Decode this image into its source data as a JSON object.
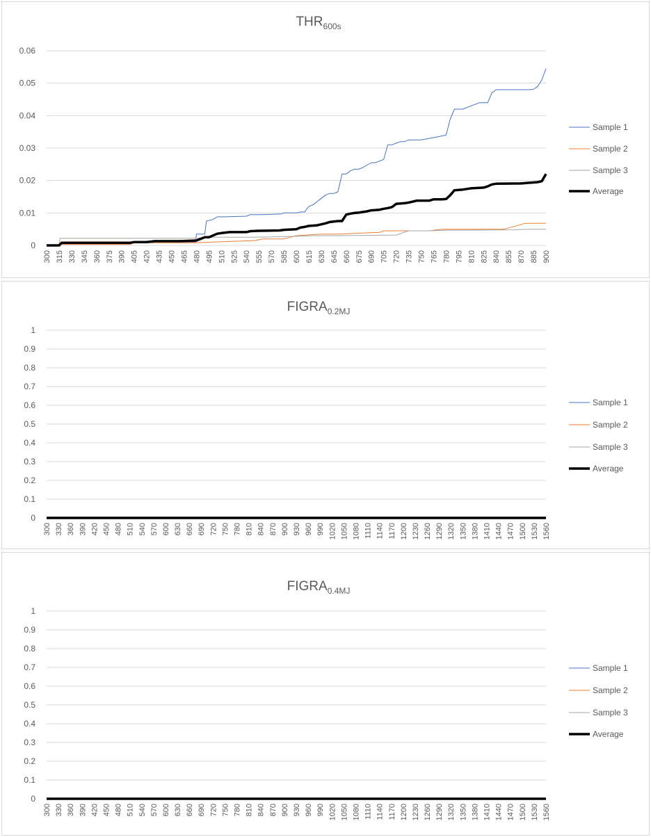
{
  "chart_data": [
    {
      "type": "line",
      "title": "THR",
      "title_subscript": "600s",
      "ylim": [
        0,
        0.06
      ],
      "yticks": [
        "0",
        "0.01",
        "0.02",
        "0.03",
        "0.04",
        "0.05",
        "0.06"
      ],
      "x_categories": [
        "300",
        "315",
        "330",
        "345",
        "360",
        "375",
        "390",
        "405",
        "420",
        "435",
        "450",
        "465",
        "480",
        "495",
        "510",
        "525",
        "540",
        "555",
        "570",
        "585",
        "600",
        "615",
        "630",
        "645",
        "660",
        "675",
        "690",
        "705",
        "720",
        "735",
        "750",
        "765",
        "780",
        "795",
        "810",
        "825",
        "840",
        "855",
        "870",
        "885",
        "900"
      ],
      "grid": true,
      "legend_position": "right",
      "series": [
        {
          "name": "Sample 1",
          "color": "#4472C4",
          "width": 1,
          "x": [
            300,
            315,
            316,
            400,
            401,
            479,
            480,
            490,
            492,
            500,
            505,
            515,
            540,
            545,
            560,
            582,
            585,
            600,
            605,
            610,
            615,
            620,
            625,
            630,
            635,
            640,
            645,
            650,
            655,
            660,
            665,
            670,
            675,
            680,
            690,
            695,
            700,
            705,
            710,
            715,
            720,
            725,
            730,
            735,
            750,
            760,
            770,
            780,
            785,
            790,
            800,
            810,
            820,
            830,
            835,
            840,
            860,
            880,
            885,
            890,
            895,
            900
          ],
          "y": [
            0,
            0,
            0.0005,
            0.0005,
            0.001,
            0.001,
            0.0035,
            0.0035,
            0.0075,
            0.008,
            0.0088,
            0.0088,
            0.009,
            0.0095,
            0.0095,
            0.0097,
            0.01,
            0.01,
            0.0103,
            0.0103,
            0.012,
            0.0125,
            0.0135,
            0.0145,
            0.0155,
            0.016,
            0.016,
            0.0165,
            0.022,
            0.022,
            0.023,
            0.0235,
            0.0235,
            0.024,
            0.0255,
            0.0255,
            0.026,
            0.0265,
            0.031,
            0.031,
            0.0315,
            0.032,
            0.032,
            0.0325,
            0.0325,
            0.033,
            0.0335,
            0.034,
            0.039,
            0.042,
            0.042,
            0.043,
            0.044,
            0.044,
            0.047,
            0.048,
            0.048,
            0.048,
            0.0481,
            0.049,
            0.051,
            0.0545
          ]
        },
        {
          "name": "Sample 2",
          "color": "#ED7D31",
          "width": 1,
          "x": [
            300,
            315,
            316,
            400,
            405,
            480,
            500,
            550,
            560,
            585,
            600,
            630,
            650,
            700,
            705,
            760,
            775,
            800,
            850,
            875,
            900
          ],
          "y": [
            0,
            0,
            0.0003,
            0.0003,
            0.0008,
            0.0008,
            0.001,
            0.0015,
            0.002,
            0.002,
            0.003,
            0.0035,
            0.0035,
            0.004,
            0.0045,
            0.0045,
            0.005,
            0.005,
            0.005,
            0.0068,
            0.0068
          ]
        },
        {
          "name": "Sample 3",
          "color": "#A5A5A5",
          "width": 1,
          "x": [
            300,
            315,
            316,
            400,
            405,
            480,
            500,
            550,
            600,
            620,
            650,
            720,
            735,
            760,
            780,
            800,
            860,
            880,
            900
          ],
          "y": [
            0,
            0,
            0.0022,
            0.0022,
            0.0022,
            0.0022,
            0.0025,
            0.0025,
            0.0028,
            0.003,
            0.003,
            0.0032,
            0.0045,
            0.0045,
            0.0047,
            0.0047,
            0.0048,
            0.005,
            0.005
          ]
        },
        {
          "name": "Average",
          "color": "#000000",
          "width": 3.5,
          "x": [
            300,
            315,
            318,
            400,
            405,
            420,
            430,
            460,
            480,
            490,
            495,
            505,
            510,
            520,
            540,
            545,
            555,
            580,
            585,
            600,
            605,
            610,
            615,
            625,
            630,
            635,
            640,
            650,
            655,
            660,
            665,
            670,
            675,
            685,
            690,
            700,
            705,
            710,
            715,
            720,
            730,
            735,
            740,
            745,
            760,
            765,
            775,
            780,
            785,
            790,
            800,
            805,
            810,
            825,
            830,
            835,
            840,
            870,
            880,
            890,
            895,
            900
          ],
          "y": [
            0,
            0,
            0.0008,
            0.0008,
            0.001,
            0.001,
            0.0013,
            0.0013,
            0.0015,
            0.0025,
            0.0025,
            0.0036,
            0.0038,
            0.0041,
            0.0041,
            0.0044,
            0.0045,
            0.0046,
            0.0048,
            0.005,
            0.0055,
            0.0057,
            0.006,
            0.0062,
            0.0065,
            0.0068,
            0.0072,
            0.0075,
            0.0075,
            0.0095,
            0.0098,
            0.01,
            0.0101,
            0.0105,
            0.0108,
            0.011,
            0.0113,
            0.0115,
            0.0118,
            0.0128,
            0.013,
            0.0132,
            0.0135,
            0.0138,
            0.0138,
            0.0142,
            0.0142,
            0.0143,
            0.0155,
            0.017,
            0.0172,
            0.0174,
            0.0176,
            0.0178,
            0.0182,
            0.0188,
            0.019,
            0.0191,
            0.0193,
            0.0195,
            0.0198,
            0.022
          ]
        }
      ]
    },
    {
      "type": "line",
      "title": "FIGRA",
      "title_subscript": "0.2MJ",
      "ylim": [
        0,
        1
      ],
      "yticks": [
        "0",
        "0.1",
        "0.2",
        "0.3",
        "0.4",
        "0.5",
        "0.6",
        "0.7",
        "0.8",
        "0.9",
        "1"
      ],
      "x_categories": [
        "300",
        "330",
        "360",
        "390",
        "420",
        "450",
        "480",
        "510",
        "540",
        "570",
        "600",
        "630",
        "660",
        "690",
        "720",
        "750",
        "780",
        "810",
        "840",
        "870",
        "900",
        "930",
        "960",
        "990",
        "1020",
        "1050",
        "1080",
        "1110",
        "1140",
        "1170",
        "1200",
        "1230",
        "1260",
        "1290",
        "1320",
        "1350",
        "1380",
        "1410",
        "1440",
        "1470",
        "1500",
        "1530",
        "1560"
      ],
      "grid": true,
      "legend_position": "right",
      "series": [
        {
          "name": "Sample 1",
          "color": "#4472C4",
          "width": 1,
          "x": [
            300,
            1560
          ],
          "y": [
            0,
            0
          ]
        },
        {
          "name": "Sample 2",
          "color": "#ED7D31",
          "width": 1,
          "x": [
            300,
            1560
          ],
          "y": [
            0,
            0
          ]
        },
        {
          "name": "Sample 3",
          "color": "#A5A5A5",
          "width": 1,
          "x": [
            300,
            1560
          ],
          "y": [
            0,
            0
          ]
        },
        {
          "name": "Average",
          "color": "#000000",
          "width": 3.5,
          "x": [
            300,
            1560
          ],
          "y": [
            0,
            0
          ]
        }
      ]
    },
    {
      "type": "line",
      "title": "FIGRA",
      "title_subscript": "0.4MJ",
      "ylim": [
        0,
        1
      ],
      "yticks": [
        "0",
        "0.1",
        "0.2",
        "0.3",
        "0.4",
        "0.5",
        "0.6",
        "0.7",
        "0.8",
        "0.9",
        "1"
      ],
      "x_categories": [
        "300",
        "330",
        "360",
        "390",
        "420",
        "450",
        "480",
        "510",
        "540",
        "570",
        "600",
        "630",
        "660",
        "690",
        "720",
        "750",
        "780",
        "810",
        "840",
        "870",
        "900",
        "930",
        "960",
        "990",
        "1020",
        "1050",
        "1080",
        "1110",
        "1140",
        "1170",
        "1200",
        "1230",
        "1260",
        "1290",
        "1320",
        "1350",
        "1380",
        "1410",
        "1440",
        "1470",
        "1500",
        "1530",
        "1560"
      ],
      "grid": true,
      "legend_position": "right",
      "series": [
        {
          "name": "Sample 1",
          "color": "#4472C4",
          "width": 1,
          "x": [
            300,
            1560
          ],
          "y": [
            0,
            0
          ]
        },
        {
          "name": "Sample 2",
          "color": "#ED7D31",
          "width": 1,
          "x": [
            300,
            1560
          ],
          "y": [
            0,
            0
          ]
        },
        {
          "name": "Sample 3",
          "color": "#A5A5A5",
          "width": 1,
          "x": [
            300,
            1560
          ],
          "y": [
            0,
            0
          ]
        },
        {
          "name": "Average",
          "color": "#000000",
          "width": 3.5,
          "x": [
            300,
            1560
          ],
          "y": [
            0,
            0
          ]
        }
      ]
    }
  ]
}
